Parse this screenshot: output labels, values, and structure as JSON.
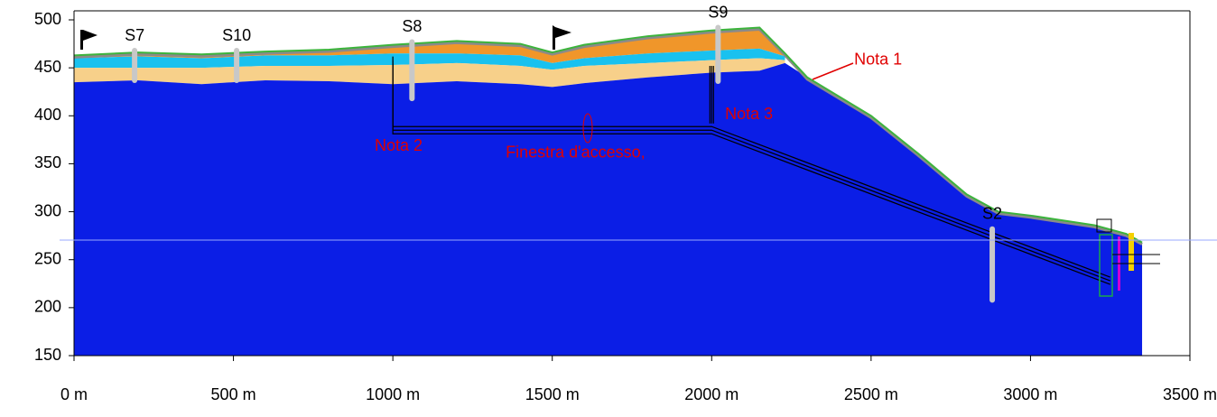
{
  "chart_data": {
    "type": "section",
    "x": [
      0,
      200,
      400,
      600,
      800,
      1000,
      1200,
      1400,
      1500,
      1600,
      1800,
      2000,
      2150,
      2230,
      2300,
      2500,
      2650,
      2800,
      2900,
      3000,
      3200,
      3300,
      3350
    ],
    "surface": {
      "color": "#3cb43c",
      "values": [
        463,
        466,
        464,
        467,
        469,
        474,
        478,
        475,
        466,
        474,
        483,
        489,
        492,
        465,
        440,
        400,
        360,
        318,
        300,
        296,
        286,
        277,
        268
      ]
    },
    "layers": [
      {
        "color": "#f0962a",
        "values": [
          463,
          466,
          464,
          467,
          469,
          474,
          478,
          475,
          466,
          474,
          483,
          489,
          492,
          465,
          null,
          null,
          null,
          null,
          null,
          null,
          null,
          null,
          null
        ]
      },
      {
        "color": "#19c1ef",
        "values": [
          460,
          462,
          460,
          463,
          463,
          465,
          465,
          463,
          455,
          460,
          465,
          468,
          470,
          462,
          null,
          null,
          null,
          null,
          null,
          null,
          null,
          null,
          null
        ]
      },
      {
        "color": "#f7d08a",
        "values": [
          450,
          450,
          450,
          452,
          452,
          453,
          455,
          452,
          448,
          452,
          455,
          458,
          460,
          458,
          null,
          null,
          null,
          null,
          null,
          null,
          null,
          null,
          null
        ]
      },
      {
        "color": "#0b1ee6",
        "values": [
          435,
          437,
          433,
          437,
          436,
          433,
          436,
          433,
          430,
          434,
          440,
          445,
          447,
          455,
          null,
          null,
          null,
          null,
          null,
          null,
          null,
          null,
          null
        ]
      }
    ],
    "tunnel": {
      "x": [
        1000,
        1000,
        2000,
        3250
      ],
      "values": [
        458,
        385,
        385,
        228
      ]
    },
    "shaft": {
      "x": [
        2000,
        2000
      ],
      "values": [
        392,
        452
      ]
    },
    "boreholes": [
      {
        "label": "S7",
        "x": 190,
        "top": 468,
        "bottom": 437
      },
      {
        "label": "S10",
        "x": 510,
        "top": 468,
        "bottom": 437
      },
      {
        "label": "S8",
        "x": 1060,
        "top": 477,
        "bottom": 418
      },
      {
        "label": "S9",
        "x": 2020,
        "top": 492,
        "bottom": 436
      },
      {
        "label": "S2",
        "x": 2880,
        "top": 282,
        "bottom": 208
      }
    ],
    "annotations": [
      {
        "text": "Nota 1",
        "x": 2447,
        "y": 458
      },
      {
        "text": "Nota 2",
        "x": 943,
        "y": 368
      },
      {
        "text": "Finestra d'accesso,",
        "x": 1354,
        "y": 361
      },
      {
        "text": "Nota 3",
        "x": 2042,
        "y": 401
      }
    ],
    "xlim": [
      0,
      3500
    ],
    "ylim": [
      150,
      500
    ],
    "xticks": [
      {
        "value": 0,
        "label": "0 m"
      },
      {
        "value": 500,
        "label": "500 m"
      },
      {
        "value": 1000,
        "label": "1000 m"
      },
      {
        "value": 1500,
        "label": "1500 m"
      },
      {
        "value": 2000,
        "label": "2000 m"
      },
      {
        "value": 2500,
        "label": "2500 m"
      },
      {
        "value": 3000,
        "label": "3000 m"
      },
      {
        "value": 3500,
        "label": "3500 m"
      }
    ],
    "yticks": [
      150,
      200,
      250,
      300,
      350,
      400,
      450,
      500
    ]
  }
}
